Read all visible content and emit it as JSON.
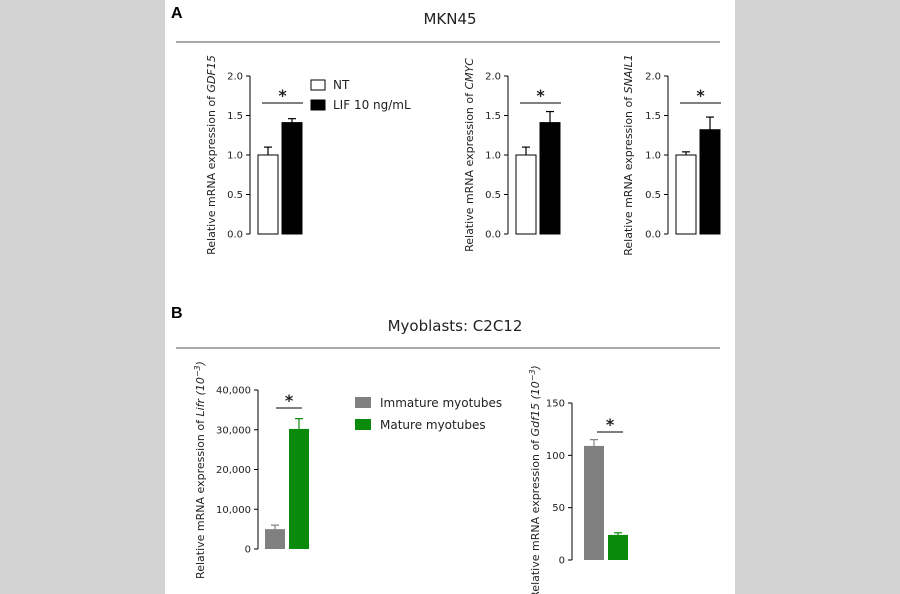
{
  "panel_a": {
    "letter": "A",
    "title": "MKN45",
    "legend": [
      {
        "label": "NT",
        "color": "#ffffff"
      },
      {
        "label": "LIF 10 ng/mL",
        "color": "#000000"
      }
    ]
  },
  "panel_b": {
    "letter": "B",
    "title": "Myoblasts: C2C12",
    "legend": [
      {
        "label": "Immature myotubes",
        "color": "#808080"
      },
      {
        "label": "Mature myotubes",
        "color": "#0a8a0a"
      }
    ]
  },
  "colors": {
    "nt": "#ffffff",
    "lif": "#000000",
    "immature": "#808080",
    "mature": "#0a8a0a"
  },
  "chart_data": [
    {
      "type": "bar",
      "panel": "A",
      "ylabel_prefix": "Relative mRNA expression of ",
      "ylabel_gene": "GDF15",
      "ylabel_suffix": "",
      "ylim": [
        0,
        2.0
      ],
      "ticks": [
        0.0,
        0.5,
        1.0,
        1.5,
        2.0
      ],
      "tick_labels": [
        "0.0",
        "0.5",
        "1.0",
        "1.5",
        "2.0"
      ],
      "series": [
        {
          "name": "NT",
          "value": 1.0,
          "error": 0.1,
          "color": "#ffffff"
        },
        {
          "name": "LIF 10 ng/mL",
          "value": 1.41,
          "error": 0.05,
          "color": "#000000"
        }
      ],
      "significance": "*"
    },
    {
      "type": "bar",
      "panel": "A",
      "ylabel_prefix": "Relative mRNA expression of ",
      "ylabel_gene": "CMYC",
      "ylabel_suffix": "",
      "ylim": [
        0,
        2.0
      ],
      "ticks": [
        0.0,
        0.5,
        1.0,
        1.5,
        2.0
      ],
      "tick_labels": [
        "0.0",
        "0.5",
        "1.0",
        "1.5",
        "2.0"
      ],
      "series": [
        {
          "name": "NT",
          "value": 1.0,
          "error": 0.1,
          "color": "#ffffff"
        },
        {
          "name": "LIF 10 ng/mL",
          "value": 1.41,
          "error": 0.14,
          "color": "#000000"
        }
      ],
      "significance": "*"
    },
    {
      "type": "bar",
      "panel": "A",
      "ylabel_prefix": "Relative mRNA expression of ",
      "ylabel_gene": "SNAIL1",
      "ylabel_suffix": "",
      "ylim": [
        0,
        2.0
      ],
      "ticks": [
        0.0,
        0.5,
        1.0,
        1.5,
        2.0
      ],
      "tick_labels": [
        "0.0",
        "0.5",
        "1.0",
        "1.5",
        "2.0"
      ],
      "series": [
        {
          "name": "NT",
          "value": 1.0,
          "error": 0.04,
          "color": "#ffffff"
        },
        {
          "name": "LIF 10 ng/mL",
          "value": 1.32,
          "error": 0.16,
          "color": "#000000"
        }
      ],
      "significance": "*"
    },
    {
      "type": "bar",
      "panel": "B",
      "ylabel_prefix": "Relative mRNA expression of ",
      "ylabel_gene": "Lifr",
      "ylabel_suffix": " (10",
      "ylabel_exp": "−3",
      "ylabel_close": ")",
      "ylim": [
        0,
        40000
      ],
      "ticks": [
        0,
        10000,
        20000,
        30000,
        40000
      ],
      "tick_labels": [
        "0",
        "10,000",
        "20,000",
        "30,000",
        "40,000"
      ],
      "series": [
        {
          "name": "Immature myotubes",
          "value": 5000,
          "error": 1000,
          "color": "#808080"
        },
        {
          "name": "Mature myotubes",
          "value": 30200,
          "error": 2600,
          "color": "#0a8a0a"
        }
      ],
      "significance": "*"
    },
    {
      "type": "bar",
      "panel": "B",
      "ylabel_prefix": "Relative mRNA expression of ",
      "ylabel_gene": "Gdf15",
      "ylabel_suffix": " (10",
      "ylabel_exp": "−3",
      "ylabel_close": ")",
      "ylim": [
        0,
        150
      ],
      "ticks": [
        0,
        50,
        100,
        150
      ],
      "tick_labels": [
        "0",
        "50",
        "100",
        "150"
      ],
      "series": [
        {
          "name": "Immature myotubes",
          "value": 109,
          "error": 6,
          "color": "#808080"
        },
        {
          "name": "Mature myotubes",
          "value": 24,
          "error": 2,
          "color": "#0a8a0a"
        }
      ],
      "significance": "*"
    }
  ]
}
